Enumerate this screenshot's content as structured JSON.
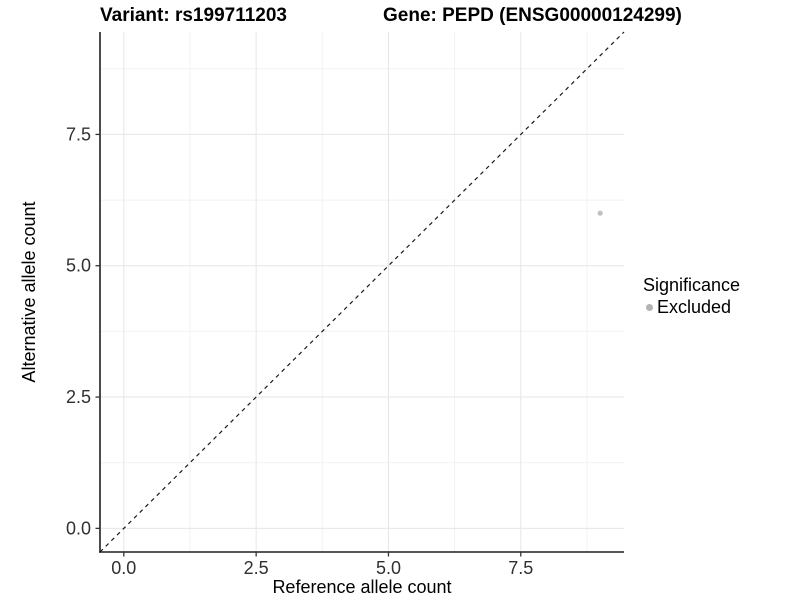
{
  "header": {
    "variant_title": "Variant: rs199711203",
    "gene_title": "Gene: PEPD (ENSG00000124299)"
  },
  "chart_data": {
    "type": "scatter",
    "title_left": "Variant: rs199711203",
    "title_right": "Gene: PEPD (ENSG00000124299)",
    "xlabel": "Reference allele count",
    "ylabel": "Alternative allele count",
    "xlim": [
      -0.45,
      9.45
    ],
    "ylim": [
      -0.45,
      9.45
    ],
    "x_ticks": [
      0.0,
      2.5,
      5.0,
      7.5
    ],
    "y_ticks": [
      0.0,
      2.5,
      5.0,
      7.5
    ],
    "x_tick_labels": [
      "0.0",
      "2.5",
      "5.0",
      "7.5"
    ],
    "y_tick_labels": [
      "0.0",
      "2.5",
      "5.0",
      "7.5"
    ],
    "minor_grid_x": [
      1.25,
      3.75,
      6.25,
      8.75
    ],
    "minor_grid_y": [
      1.25,
      3.75,
      6.25,
      8.75
    ],
    "grid": true,
    "series": [
      {
        "name": "Excluded",
        "points": [
          {
            "x": 9,
            "y": 6
          }
        ],
        "color": "#c0c0c0",
        "marker": "circle"
      }
    ],
    "reference_line": {
      "type": "identity",
      "style": "dashed",
      "color": "#1a1a1a",
      "from": [
        -0.45,
        -0.45
      ],
      "to": [
        9.45,
        9.45
      ]
    },
    "legend": {
      "title": "Significance",
      "position": "right",
      "entries": [
        {
          "label": "Excluded",
          "color": "#b3b3b3",
          "marker": "circle"
        }
      ]
    }
  },
  "colors": {
    "background": "#ffffff",
    "grid_major": "#e6e6e6",
    "grid_minor": "#f2f2f2",
    "axis_line": "#1f1f1f",
    "tick_mark": "#333333",
    "point": "#c0c0c0",
    "legend_dot": "#b3b3b3"
  }
}
